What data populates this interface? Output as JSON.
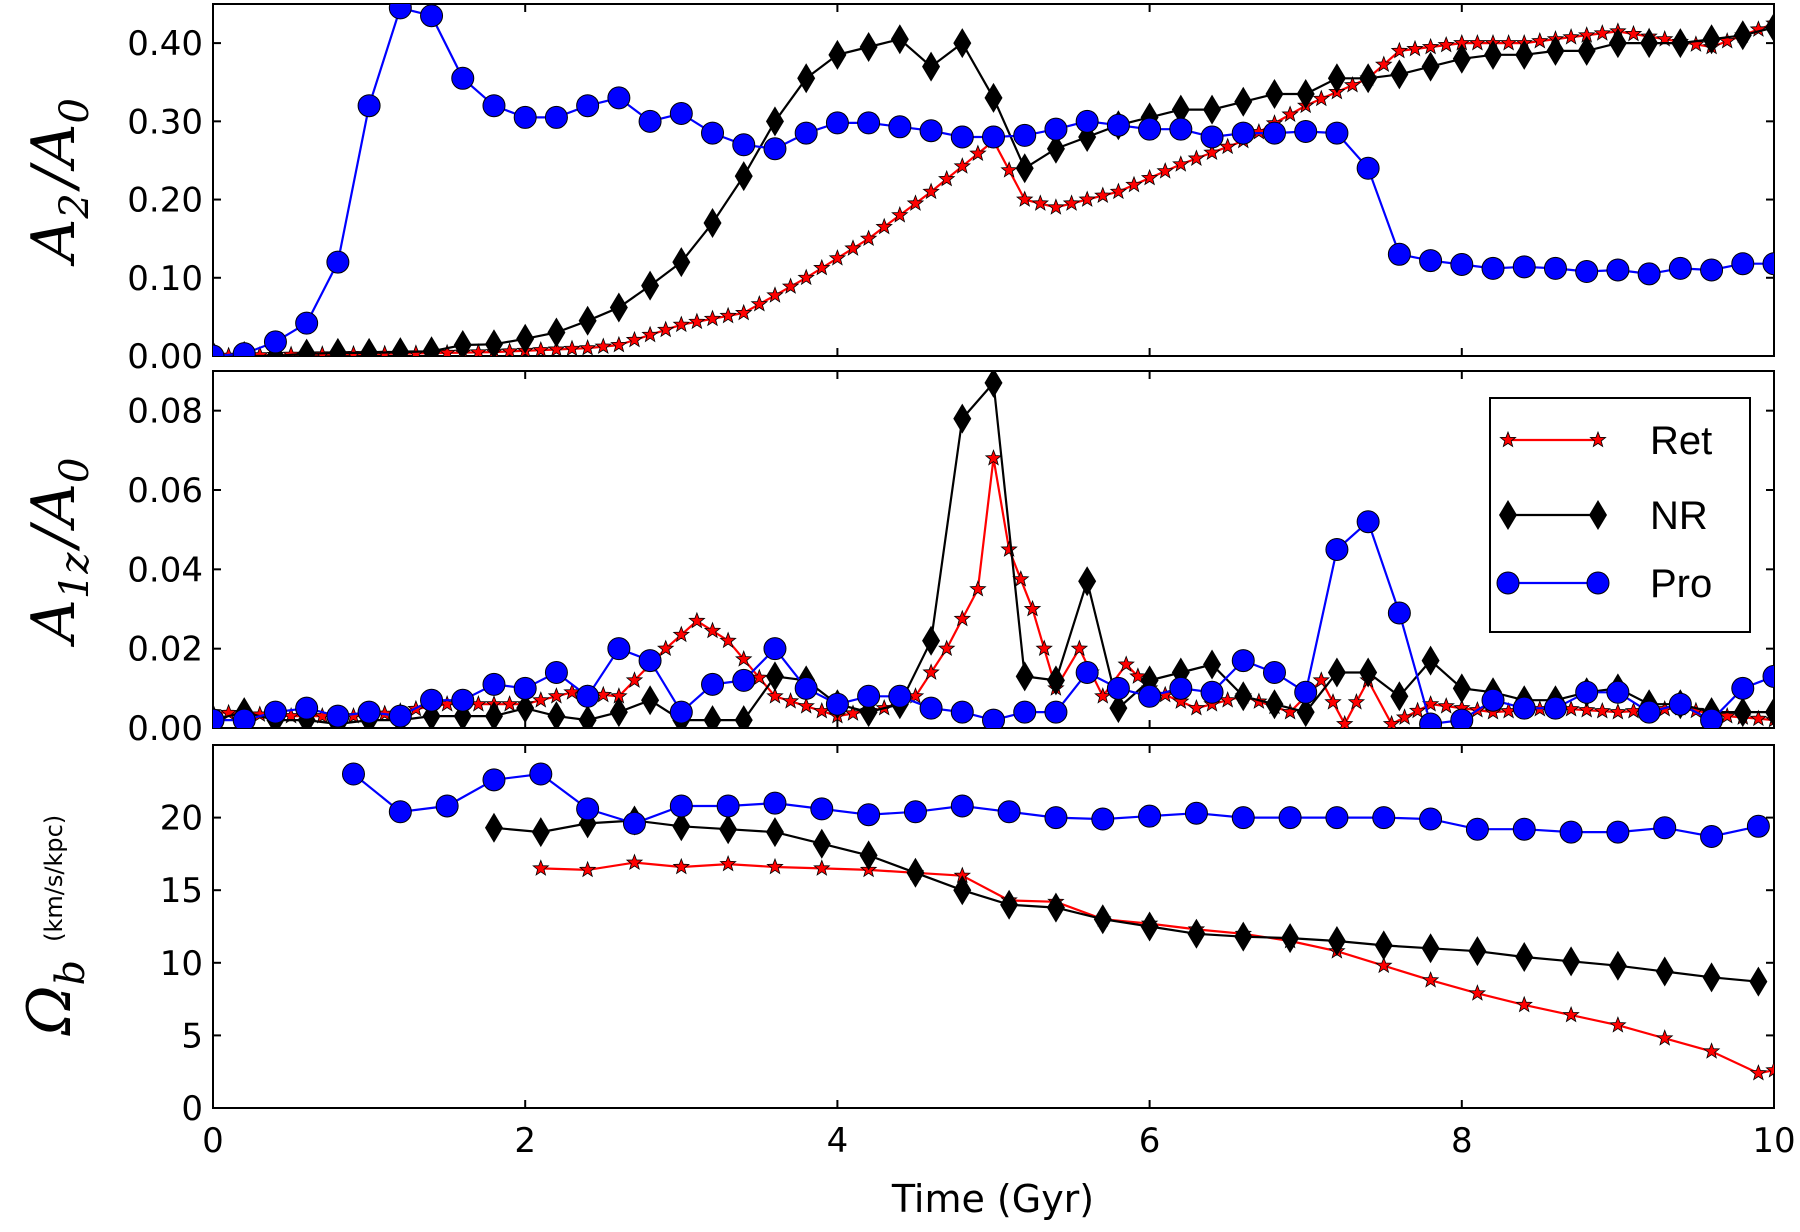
{
  "chart_data": [
    {
      "type": "line",
      "ylabel": "A2/A0",
      "ylabel_main": "A",
      "ylabel_sub": "2",
      "ylabel_den": "A",
      "ylabel_den_sub": "0",
      "xlim": [
        0,
        10
      ],
      "ylim": [
        0,
        0.45
      ],
      "yticks": [
        0.0,
        0.1,
        0.2,
        0.3,
        0.4
      ],
      "ytick_labels": [
        "0.00",
        "0.10",
        "0.20",
        "0.30",
        "0.40"
      ],
      "series": [
        {
          "name": "Ret",
          "color": "#ff0000",
          "marker": "star",
          "dense": true,
          "x": [
            0,
            0.6,
            1.2,
            1.8,
            2.4,
            2.6,
            3.0,
            3.4,
            3.8,
            4.2,
            4.6,
            5.0,
            5.2,
            5.4,
            5.8,
            6.2,
            6.6,
            7.0,
            7.4,
            7.6,
            8.0,
            8.4,
            9.0,
            9.6,
            10.0
          ],
          "y": [
            0.0,
            0.002,
            0.003,
            0.005,
            0.01,
            0.014,
            0.04,
            0.055,
            0.1,
            0.15,
            0.21,
            0.275,
            0.2,
            0.19,
            0.21,
            0.245,
            0.275,
            0.32,
            0.355,
            0.39,
            0.4,
            0.4,
            0.415,
            0.395,
            0.425
          ]
        },
        {
          "name": "NR",
          "color": "#000000",
          "marker": "diamond",
          "dense": false,
          "x": [
            0,
            0.2,
            0.4,
            0.6,
            0.8,
            1.0,
            1.2,
            1.4,
            1.6,
            1.8,
            2.0,
            2.2,
            2.4,
            2.6,
            2.8,
            3.0,
            3.2,
            3.4,
            3.6,
            3.8,
            4.0,
            4.2,
            4.4,
            4.6,
            4.8,
            5.0,
            5.2,
            5.4,
            5.6,
            5.8,
            6.0,
            6.2,
            6.4,
            6.6,
            6.8,
            7.0,
            7.2,
            7.4,
            7.6,
            7.8,
            8.0,
            8.2,
            8.4,
            8.6,
            8.8,
            9.0,
            9.2,
            9.4,
            9.6,
            9.8,
            10.0
          ],
          "y": [
            0.0,
            0.0,
            0.0,
            0.003,
            0.004,
            0.004,
            0.005,
            0.006,
            0.014,
            0.015,
            0.022,
            0.03,
            0.045,
            0.062,
            0.09,
            0.12,
            0.17,
            0.23,
            0.3,
            0.355,
            0.385,
            0.395,
            0.405,
            0.37,
            0.4,
            0.33,
            0.24,
            0.265,
            0.28,
            0.295,
            0.305,
            0.315,
            0.315,
            0.325,
            0.335,
            0.335,
            0.355,
            0.355,
            0.36,
            0.37,
            0.38,
            0.385,
            0.385,
            0.39,
            0.39,
            0.4,
            0.4,
            0.4,
            0.405,
            0.41,
            0.42
          ]
        },
        {
          "name": "Pro",
          "color": "#0000ff",
          "marker": "circle",
          "dense": false,
          "x": [
            0,
            0.2,
            0.4,
            0.6,
            0.8,
            1.0,
            1.2,
            1.4,
            1.6,
            1.8,
            2.0,
            2.2,
            2.4,
            2.6,
            2.8,
            3.0,
            3.2,
            3.4,
            3.6,
            3.8,
            4.0,
            4.2,
            4.4,
            4.6,
            4.8,
            5.0,
            5.2,
            5.4,
            5.6,
            5.8,
            6.0,
            6.2,
            6.4,
            6.6,
            6.8,
            7.0,
            7.2,
            7.4,
            7.6,
            7.8,
            8.0,
            8.2,
            8.4,
            8.6,
            8.8,
            9.0,
            9.2,
            9.4,
            9.6,
            9.8,
            10.0
          ],
          "y": [
            0.0,
            0.003,
            0.018,
            0.042,
            0.12,
            0.32,
            0.445,
            0.435,
            0.355,
            0.32,
            0.305,
            0.305,
            0.32,
            0.33,
            0.3,
            0.31,
            0.285,
            0.27,
            0.265,
            0.285,
            0.298,
            0.298,
            0.293,
            0.288,
            0.28,
            0.28,
            0.282,
            0.29,
            0.3,
            0.295,
            0.29,
            0.29,
            0.28,
            0.285,
            0.285,
            0.287,
            0.285,
            0.24,
            0.13,
            0.122,
            0.117,
            0.112,
            0.114,
            0.112,
            0.108,
            0.11,
            0.105,
            0.112,
            0.11,
            0.118,
            0.118
          ]
        }
      ]
    },
    {
      "type": "line",
      "ylabel": "A1z/A0",
      "ylabel_main": "A",
      "ylabel_sub": "1z",
      "ylabel_den": "A",
      "ylabel_den_sub": "0",
      "xlim": [
        0,
        10
      ],
      "ylim": [
        0,
        0.09
      ],
      "yticks": [
        0.0,
        0.02,
        0.04,
        0.06,
        0.08
      ],
      "ytick_labels": [
        "0.00",
        "0.02",
        "0.04",
        "0.06",
        "0.08"
      ],
      "legend": {
        "placement": "top-right",
        "entries": [
          "Ret",
          "NR",
          "Pro"
        ]
      },
      "series": [
        {
          "name": "Ret",
          "color": "#ff0000",
          "marker": "star",
          "dense": true,
          "x": [
            0,
            0.5,
            1.0,
            1.5,
            2.0,
            2.3,
            2.6,
            2.9,
            3.1,
            3.3,
            3.6,
            4.0,
            4.3,
            4.5,
            4.7,
            4.9,
            5.0,
            5.1,
            5.25,
            5.4,
            5.55,
            5.7,
            5.85,
            6.0,
            6.3,
            6.6,
            6.9,
            7.1,
            7.25,
            7.4,
            7.55,
            7.8,
            8.2,
            8.6,
            9.0,
            9.4,
            9.7,
            10.0
          ],
          "y": [
            0.004,
            0.003,
            0.003,
            0.006,
            0.006,
            0.009,
            0.008,
            0.02,
            0.027,
            0.022,
            0.008,
            0.003,
            0.005,
            0.008,
            0.02,
            0.035,
            0.068,
            0.045,
            0.03,
            0.01,
            0.02,
            0.008,
            0.016,
            0.01,
            0.005,
            0.008,
            0.004,
            0.012,
            0.001,
            0.012,
            0.001,
            0.006,
            0.004,
            0.005,
            0.004,
            0.005,
            0.003,
            0.002
          ]
        },
        {
          "name": "NR",
          "color": "#000000",
          "marker": "diamond",
          "dense": false,
          "x": [
            0,
            0.2,
            0.4,
            0.6,
            0.8,
            1.0,
            1.2,
            1.4,
            1.6,
            1.8,
            2.0,
            2.2,
            2.4,
            2.6,
            2.8,
            3.0,
            3.2,
            3.4,
            3.6,
            3.8,
            4.0,
            4.2,
            4.4,
            4.6,
            4.8,
            5.0,
            5.2,
            5.4,
            5.6,
            5.8,
            6.0,
            6.2,
            6.4,
            6.6,
            6.8,
            7.0,
            7.2,
            7.4,
            7.6,
            7.8,
            8.0,
            8.2,
            8.4,
            8.6,
            8.8,
            9.0,
            9.2,
            9.4,
            9.6,
            9.8,
            10.0
          ],
          "y": [
            0.002,
            0.004,
            0.002,
            0.002,
            0.001,
            0.002,
            0.002,
            0.003,
            0.003,
            0.003,
            0.005,
            0.003,
            0.002,
            0.004,
            0.007,
            0.002,
            0.002,
            0.002,
            0.013,
            0.012,
            0.006,
            0.004,
            0.006,
            0.022,
            0.078,
            0.087,
            0.013,
            0.012,
            0.037,
            0.005,
            0.012,
            0.014,
            0.016,
            0.008,
            0.006,
            0.004,
            0.014,
            0.014,
            0.008,
            0.017,
            0.01,
            0.009,
            0.007,
            0.007,
            0.009,
            0.01,
            0.006,
            0.006,
            0.004,
            0.004,
            0.004
          ]
        },
        {
          "name": "Pro",
          "color": "#0000ff",
          "marker": "circle",
          "dense": false,
          "x": [
            0,
            0.2,
            0.4,
            0.6,
            0.8,
            1.0,
            1.2,
            1.4,
            1.6,
            1.8,
            2.0,
            2.2,
            2.4,
            2.6,
            2.8,
            3.0,
            3.2,
            3.4,
            3.6,
            3.8,
            4.0,
            4.2,
            4.4,
            4.6,
            4.8,
            5.0,
            5.2,
            5.4,
            5.6,
            5.8,
            6.0,
            6.2,
            6.4,
            6.6,
            6.8,
            7.0,
            7.2,
            7.4,
            7.6,
            7.8,
            8.0,
            8.2,
            8.4,
            8.6,
            8.8,
            9.0,
            9.2,
            9.4,
            9.6,
            9.8,
            10.0
          ],
          "y": [
            0.002,
            0.002,
            0.004,
            0.005,
            0.003,
            0.004,
            0.003,
            0.007,
            0.007,
            0.011,
            0.01,
            0.014,
            0.008,
            0.02,
            0.017,
            0.004,
            0.011,
            0.012,
            0.02,
            0.01,
            0.006,
            0.008,
            0.008,
            0.005,
            0.004,
            0.002,
            0.004,
            0.004,
            0.014,
            0.01,
            0.008,
            0.01,
            0.009,
            0.017,
            0.014,
            0.009,
            0.045,
            0.052,
            0.029,
            0.001,
            0.002,
            0.007,
            0.005,
            0.005,
            0.009,
            0.009,
            0.004,
            0.006,
            0.002,
            0.01,
            0.013
          ]
        }
      ]
    },
    {
      "type": "line",
      "ylabel": "Ωb (km/s/kpc)",
      "ylabel_main": "Ω",
      "ylabel_sub": "b",
      "ylabel_unit": "(km/s/kpc)",
      "xlabel": "Time (Gyr)",
      "xlim": [
        0,
        10
      ],
      "ylim": [
        0,
        25
      ],
      "yticks": [
        0,
        5,
        10,
        15,
        20
      ],
      "ytick_labels": [
        "0",
        "5",
        "10",
        "15",
        "20"
      ],
      "xticks": [
        0,
        2,
        4,
        6,
        8,
        10
      ],
      "xtick_labels": [
        "0",
        "2",
        "4",
        "6",
        "8",
        "10"
      ],
      "series": [
        {
          "name": "Ret",
          "color": "#ff0000",
          "marker": "star",
          "dense": false,
          "x": [
            2.1,
            2.4,
            2.7,
            3.0,
            3.3,
            3.6,
            3.9,
            4.2,
            4.5,
            4.8,
            5.1,
            5.4,
            5.7,
            6.0,
            6.3,
            6.6,
            6.9,
            7.2,
            7.5,
            7.8,
            8.1,
            8.4,
            8.7,
            9.0,
            9.3,
            9.6,
            9.9,
            10.0
          ],
          "y": [
            16.5,
            16.4,
            16.9,
            16.6,
            16.8,
            16.6,
            16.5,
            16.4,
            16.2,
            16.0,
            14.3,
            14.2,
            13.0,
            12.7,
            12.3,
            12.0,
            11.5,
            10.8,
            9.8,
            8.8,
            7.9,
            7.1,
            6.4,
            5.7,
            4.8,
            3.9,
            2.4,
            2.6
          ]
        },
        {
          "name": "NR",
          "color": "#000000",
          "marker": "diamond",
          "dense": false,
          "x": [
            1.8,
            2.1,
            2.4,
            2.7,
            3.0,
            3.3,
            3.6,
            3.9,
            4.2,
            4.5,
            4.8,
            5.1,
            5.4,
            5.7,
            6.0,
            6.3,
            6.6,
            6.9,
            7.2,
            7.5,
            7.8,
            8.1,
            8.4,
            8.7,
            9.0,
            9.3,
            9.6,
            9.9
          ],
          "y": [
            19.3,
            19.0,
            19.6,
            19.8,
            19.4,
            19.2,
            19.0,
            18.2,
            17.4,
            16.2,
            15.0,
            14.0,
            13.8,
            13.0,
            12.5,
            12.0,
            11.8,
            11.7,
            11.5,
            11.2,
            11.0,
            10.8,
            10.4,
            10.1,
            9.8,
            9.4,
            9.0,
            8.7
          ]
        },
        {
          "name": "Pro",
          "color": "#0000ff",
          "marker": "circle",
          "dense": false,
          "x": [
            0.9,
            1.2,
            1.5,
            1.8,
            2.1,
            2.4,
            2.7,
            3.0,
            3.3,
            3.6,
            3.9,
            4.2,
            4.5,
            4.8,
            5.1,
            5.4,
            5.7,
            6.0,
            6.3,
            6.6,
            6.9,
            7.2,
            7.5,
            7.8,
            8.1,
            8.4,
            8.7,
            9.0,
            9.3,
            9.6,
            9.9
          ],
          "y": [
            23.0,
            20.4,
            20.8,
            22.6,
            23.0,
            20.6,
            19.6,
            20.8,
            20.8,
            21.0,
            20.6,
            20.2,
            20.4,
            20.8,
            20.4,
            20.0,
            19.9,
            20.1,
            20.3,
            20.0,
            20.0,
            20.0,
            20.0,
            19.9,
            19.2,
            19.2,
            19.0,
            19.0,
            19.3,
            18.7,
            19.4
          ]
        }
      ]
    }
  ]
}
